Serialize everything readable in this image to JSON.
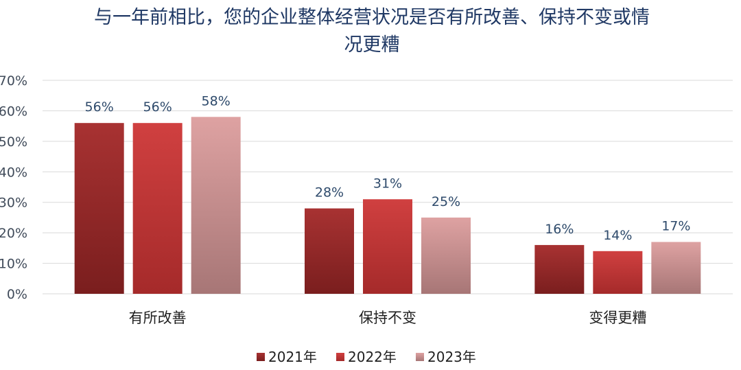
{
  "chart_data": {
    "type": "bar",
    "title": "与一年前相比，您的企业整体经营状况是否有所改善、保持不变或情况更糟",
    "title_lines": [
      "与一年前相比，您的企业整体经营状况是否有所改善、保持不变或情",
      "况更糟"
    ],
    "categories": [
      "有所改善",
      "保持不变",
      "变得更糟"
    ],
    "series": [
      {
        "name": "2021年",
        "values": [
          56,
          28,
          16
        ],
        "labels": [
          "56%",
          "28%",
          "16%"
        ],
        "color_top": "#a83232",
        "color_bottom": "#7a1e1e"
      },
      {
        "name": "2022年",
        "values": [
          56,
          31,
          14
        ],
        "labels": [
          "56%",
          "31%",
          "14%"
        ],
        "color_top": "#d04040",
        "color_bottom": "#a52a2a"
      },
      {
        "name": "2023年",
        "values": [
          58,
          25,
          17
        ],
        "labels": [
          "58%",
          "25%",
          "17%"
        ],
        "color_top": "#dea2a2",
        "color_bottom": "#a77676"
      }
    ],
    "y_ticks": [
      "0%",
      "10%",
      "20%",
      "30%",
      "40%",
      "50%",
      "60%",
      "70%"
    ],
    "ylim": [
      0,
      70
    ],
    "grid": true,
    "legend_position": "bottom"
  }
}
